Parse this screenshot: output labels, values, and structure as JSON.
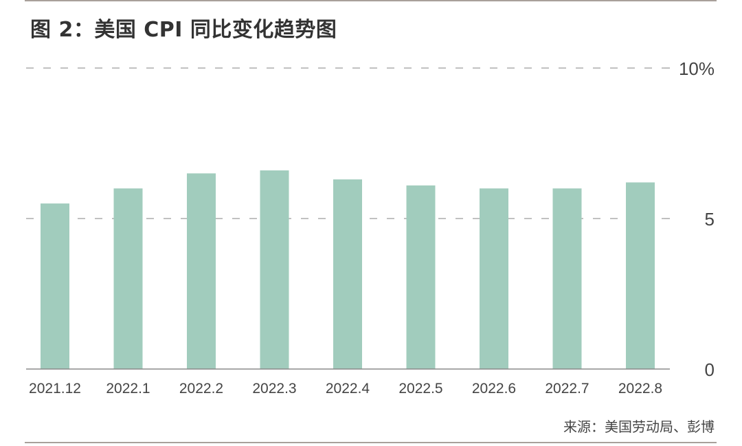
{
  "title": "图 2：美国 CPI 同比变化趋势图",
  "source": "来源：美国劳动局、彭博",
  "colors": {
    "bar": "#a1ccbd",
    "grid": "#9c9c9c",
    "axis": "#8a8a8a",
    "text": "#444444",
    "rule": "#a8a09a"
  },
  "chart_data": {
    "type": "bar",
    "categories": [
      "2021.12",
      "2022.1",
      "2022.2",
      "2022.3",
      "2022.4",
      "2022.5",
      "2022.6",
      "2022.7",
      "2022.8"
    ],
    "values": [
      5.5,
      6.0,
      6.5,
      6.6,
      6.3,
      6.1,
      6.0,
      6.0,
      6.2
    ],
    "ylim": [
      0,
      10
    ],
    "yticks": [
      0,
      5,
      10
    ],
    "ytick_labels": [
      "0",
      "5",
      "10%"
    ],
    "y_axis_side": "right",
    "grid": "dashed",
    "legend": "none",
    "xlabel": "",
    "ylabel": ""
  }
}
